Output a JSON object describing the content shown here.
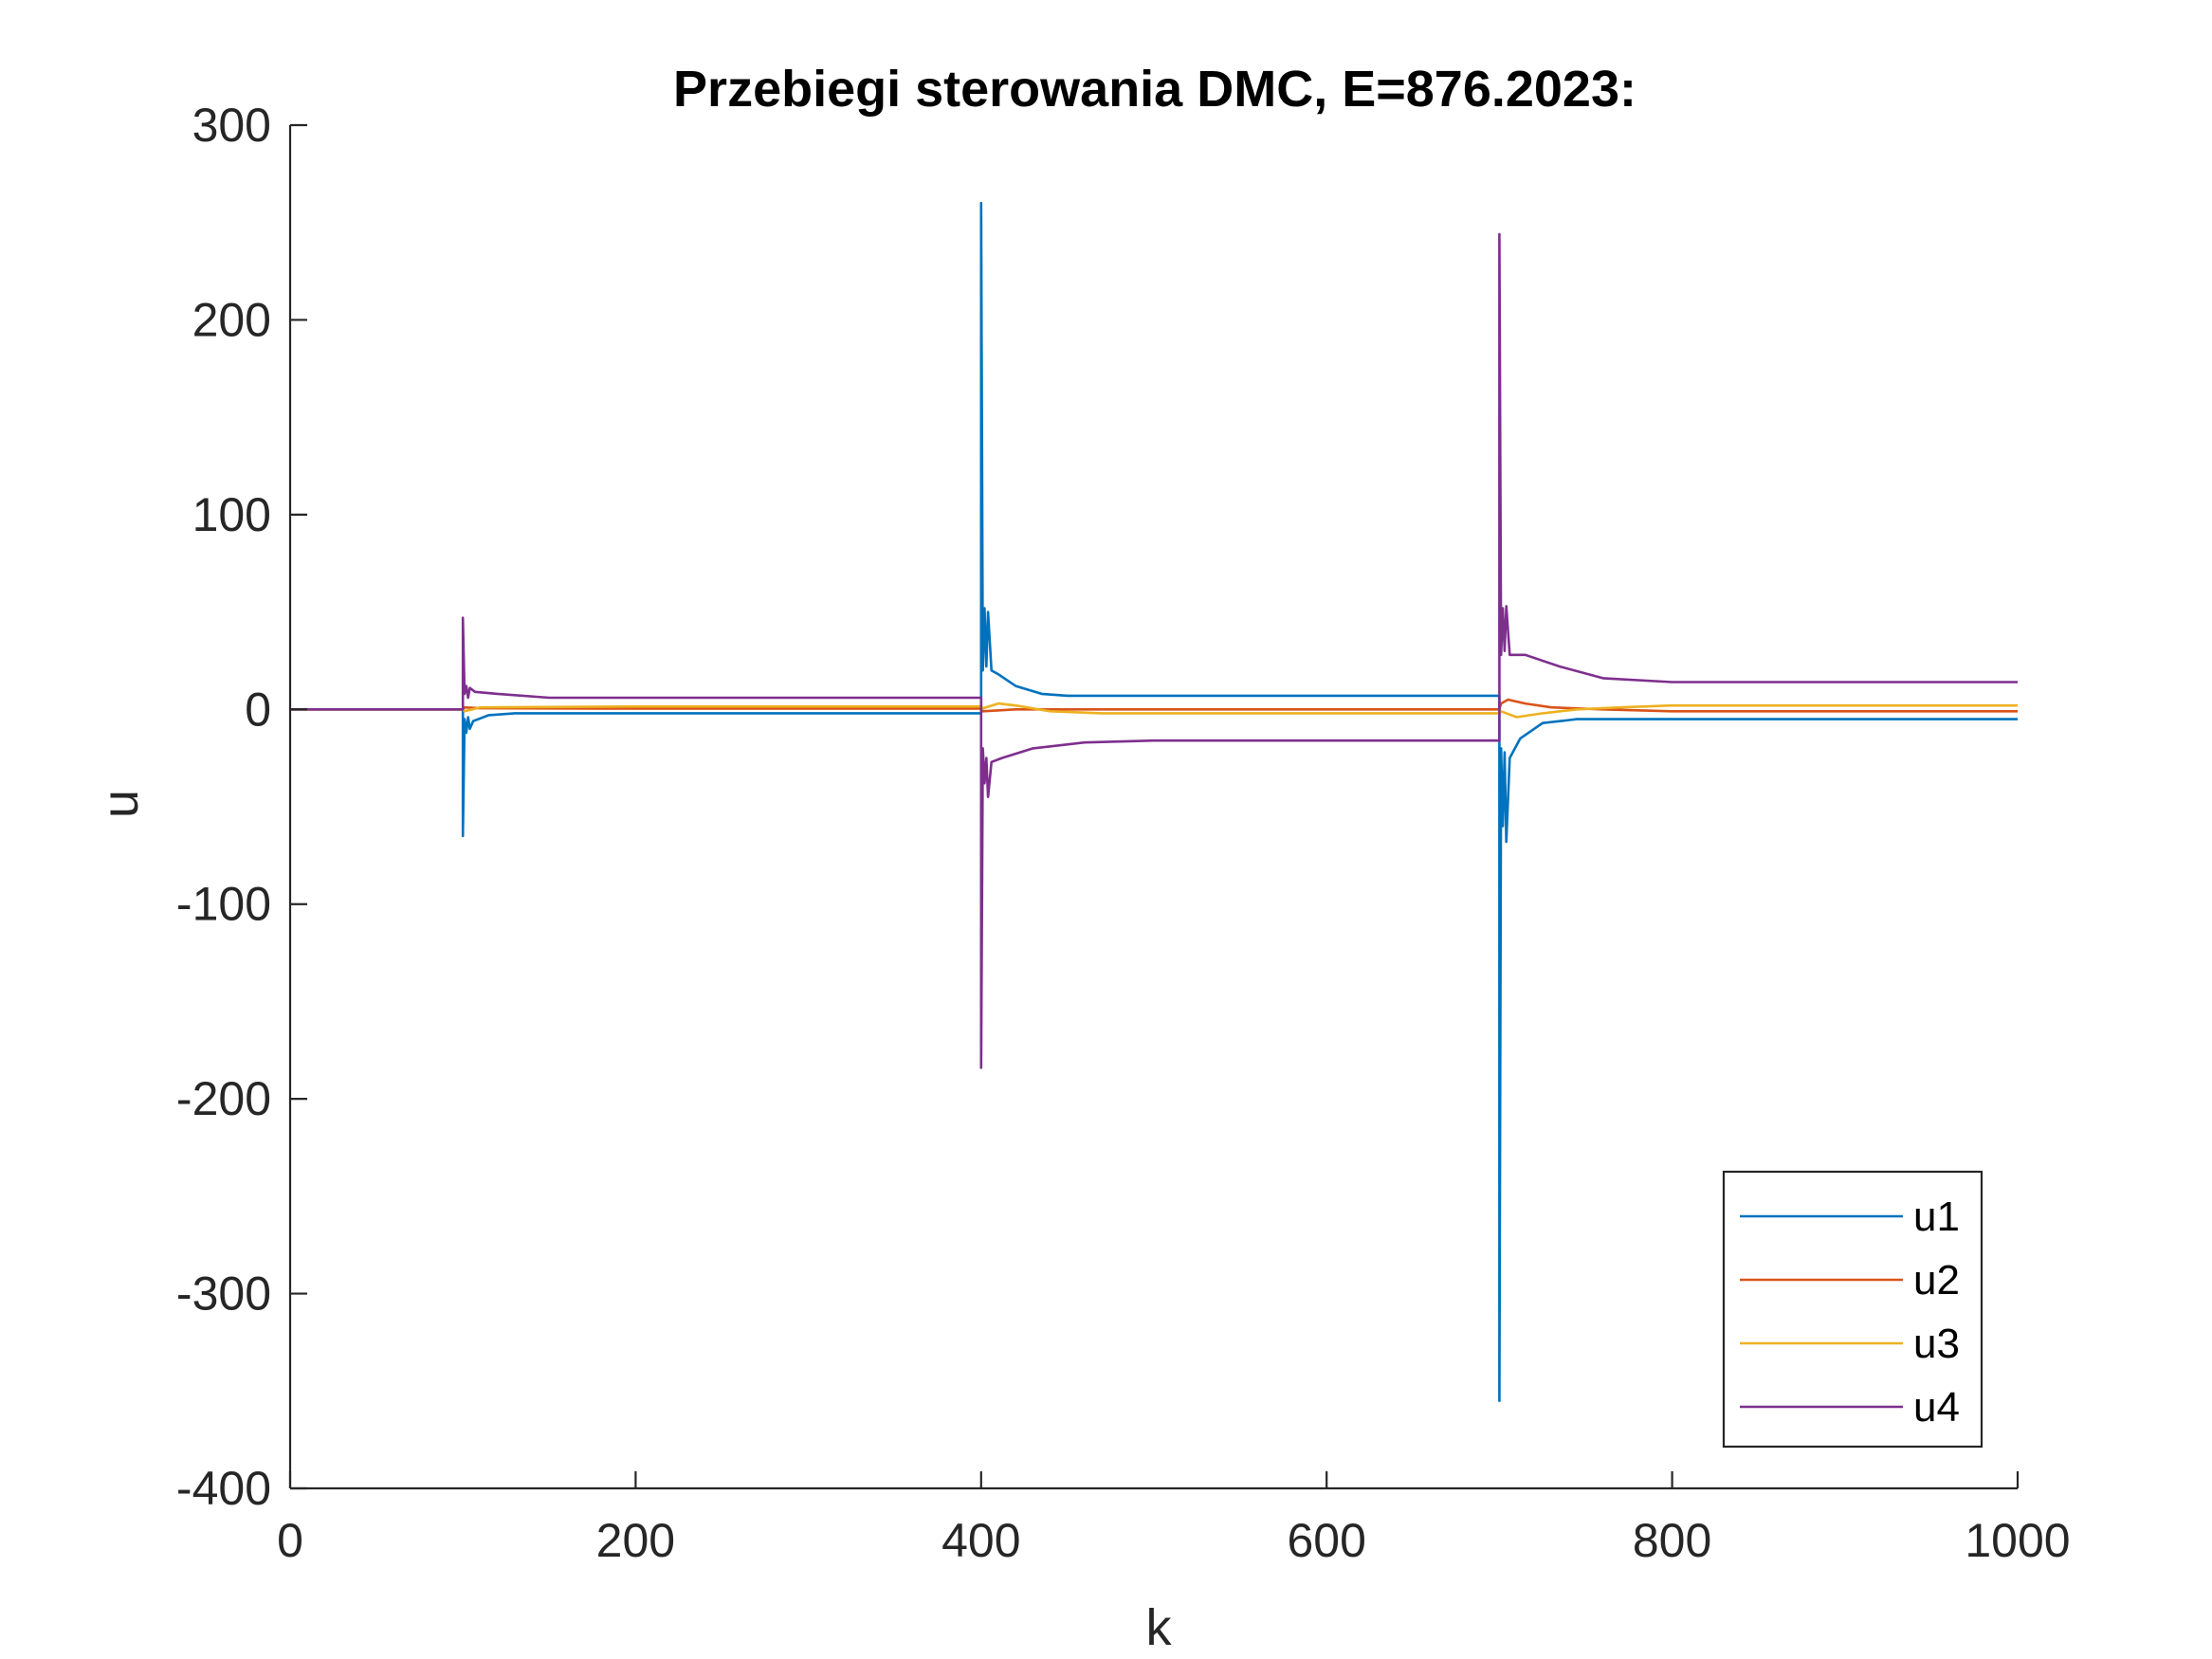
{
  "chart_data": {
    "type": "line",
    "title": "Przebiegi sterowania DMC, E=876.2023:",
    "xlabel": "k",
    "ylabel": "u",
    "xlim": [
      0,
      1000
    ],
    "ylim": [
      -400,
      300
    ],
    "xticks": [
      0,
      200,
      400,
      600,
      800,
      1000
    ],
    "xtick_labels": [
      "0",
      "200",
      "400",
      "600",
      "800",
      "1000"
    ],
    "yticks": [
      -400,
      -300,
      -200,
      -100,
      0,
      100,
      200,
      300
    ],
    "ytick_labels": [
      "-400",
      "-300",
      "-200",
      "-100",
      "0",
      "100",
      "200",
      "300"
    ],
    "legend_position": "bottom-right",
    "series": [
      {
        "name": "u1",
        "color": "#0072BD",
        "points": [
          [
            0,
            0
          ],
          [
            100,
            0
          ],
          [
            100,
            -65
          ],
          [
            101,
            -5
          ],
          [
            102,
            -12
          ],
          [
            103,
            -4
          ],
          [
            104,
            -10
          ],
          [
            106,
            -6
          ],
          [
            115,
            -3
          ],
          [
            130,
            -2
          ],
          [
            200,
            -2
          ],
          [
            400,
            -2
          ],
          [
            400,
            260
          ],
          [
            401,
            20
          ],
          [
            402,
            52
          ],
          [
            403,
            22
          ],
          [
            404,
            50
          ],
          [
            406,
            20
          ],
          [
            410,
            18
          ],
          [
            420,
            12
          ],
          [
            435,
            8
          ],
          [
            450,
            7
          ],
          [
            500,
            7
          ],
          [
            600,
            7
          ],
          [
            700,
            7
          ],
          [
            700,
            -355
          ],
          [
            701,
            -20
          ],
          [
            702,
            -60
          ],
          [
            703,
            -22
          ],
          [
            704,
            -68
          ],
          [
            706,
            -25
          ],
          [
            712,
            -15
          ],
          [
            725,
            -7
          ],
          [
            745,
            -5
          ],
          [
            800,
            -5
          ],
          [
            900,
            -5
          ],
          [
            1000,
            -5
          ]
        ]
      },
      {
        "name": "u2",
        "color": "#D95319",
        "points": [
          [
            0,
            0
          ],
          [
            100,
            0
          ],
          [
            101,
            1
          ],
          [
            110,
            0.6
          ],
          [
            200,
            0.4
          ],
          [
            400,
            0.4
          ],
          [
            401,
            -1
          ],
          [
            420,
            0
          ],
          [
            500,
            0
          ],
          [
            700,
            0
          ],
          [
            701,
            3
          ],
          [
            705,
            5
          ],
          [
            715,
            3
          ],
          [
            730,
            1
          ],
          [
            760,
            0
          ],
          [
            800,
            -1
          ],
          [
            1000,
            -1
          ]
        ]
      },
      {
        "name": "u3",
        "color": "#EDB120",
        "points": [
          [
            0,
            0
          ],
          [
            100,
            0
          ],
          [
            101,
            -1
          ],
          [
            110,
            1
          ],
          [
            200,
            1.5
          ],
          [
            400,
            1.5
          ],
          [
            401,
            0.5
          ],
          [
            410,
            3
          ],
          [
            420,
            2
          ],
          [
            440,
            -1
          ],
          [
            470,
            -2
          ],
          [
            600,
            -2
          ],
          [
            700,
            -2
          ],
          [
            701,
            -1
          ],
          [
            710,
            -4
          ],
          [
            725,
            -2
          ],
          [
            745,
            0
          ],
          [
            770,
            1
          ],
          [
            800,
            2
          ],
          [
            1000,
            2
          ]
        ]
      },
      {
        "name": "u4",
        "color": "#7E2F8E",
        "points": [
          [
            0,
            0
          ],
          [
            100,
            0
          ],
          [
            100,
            47
          ],
          [
            101,
            8
          ],
          [
            102,
            12
          ],
          [
            103,
            6
          ],
          [
            104,
            11
          ],
          [
            107,
            9
          ],
          [
            120,
            8
          ],
          [
            150,
            6
          ],
          [
            200,
            6
          ],
          [
            400,
            6
          ],
          [
            400,
            -184
          ],
          [
            401,
            -20
          ],
          [
            402,
            -38
          ],
          [
            403,
            -25
          ],
          [
            404,
            -45
          ],
          [
            406,
            -27
          ],
          [
            412,
            -25
          ],
          [
            430,
            -20
          ],
          [
            460,
            -17
          ],
          [
            500,
            -16
          ],
          [
            600,
            -16
          ],
          [
            700,
            -16
          ],
          [
            700,
            244
          ],
          [
            701,
            28
          ],
          [
            702,
            52
          ],
          [
            703,
            30
          ],
          [
            704,
            53
          ],
          [
            706,
            28
          ],
          [
            715,
            28
          ],
          [
            735,
            22
          ],
          [
            760,
            16
          ],
          [
            800,
            14
          ],
          [
            1000,
            14
          ]
        ]
      }
    ]
  }
}
